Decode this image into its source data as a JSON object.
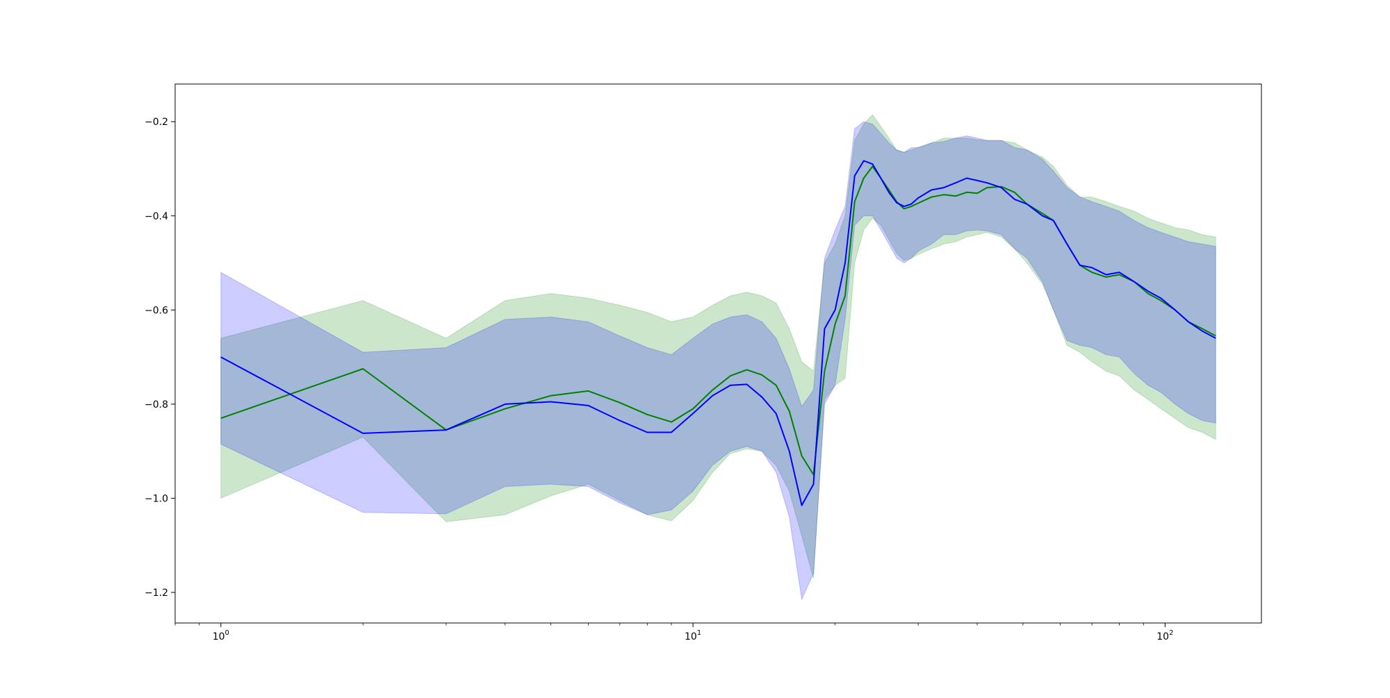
{
  "chart_data": {
    "type": "line",
    "title": "",
    "xlabel": "",
    "ylabel": "",
    "x_scale": "log",
    "xlim": [
      0.8,
      160
    ],
    "ylim": [
      -1.265,
      -0.12
    ],
    "grid": false,
    "x_ticks": [
      {
        "value": 1,
        "base": "10",
        "exp": "0"
      },
      {
        "value": 10,
        "base": "10",
        "exp": "1"
      },
      {
        "value": 100,
        "base": "10",
        "exp": "2"
      }
    ],
    "y_ticks": [
      {
        "value": -0.2,
        "label": "−0.2"
      },
      {
        "value": -0.4,
        "label": "−0.4"
      },
      {
        "value": -0.6,
        "label": "−0.6"
      },
      {
        "value": -0.8,
        "label": "−0.8"
      },
      {
        "value": -1.0,
        "label": "−1.0"
      },
      {
        "value": -1.2,
        "label": "−1.2"
      }
    ],
    "x": [
      1,
      2,
      3,
      4,
      5,
      6,
      7,
      8,
      9,
      10,
      11,
      12,
      13,
      14,
      15,
      16,
      17,
      18,
      19,
      20,
      21,
      22,
      23,
      24,
      25,
      26,
      27,
      28,
      29,
      30,
      32,
      34,
      36,
      38,
      40,
      42,
      45,
      48,
      51,
      55,
      58,
      62,
      66,
      70,
      75,
      80,
      86,
      92,
      98,
      105,
      112,
      120,
      128
    ],
    "series": [
      {
        "color": "#008000",
        "band_color": "#008000",
        "band_opacity": 0.2,
        "values": [
          -0.83,
          -0.725,
          -0.855,
          -0.81,
          -0.782,
          -0.772,
          -0.797,
          -0.822,
          -0.838,
          -0.81,
          -0.77,
          -0.74,
          -0.727,
          -0.738,
          -0.76,
          -0.815,
          -0.91,
          -0.95,
          -0.73,
          -0.63,
          -0.57,
          -0.37,
          -0.32,
          -0.295,
          -0.32,
          -0.345,
          -0.37,
          -0.385,
          -0.38,
          -0.373,
          -0.36,
          -0.355,
          -0.358,
          -0.35,
          -0.352,
          -0.34,
          -0.338,
          -0.35,
          -0.375,
          -0.395,
          -0.41,
          -0.46,
          -0.505,
          -0.52,
          -0.53,
          -0.525,
          -0.54,
          -0.565,
          -0.58,
          -0.6,
          -0.625,
          -0.64,
          -0.655
        ],
        "lower": [
          -1.0,
          -0.87,
          -1.05,
          -1.035,
          -0.995,
          -0.97,
          -1.005,
          -1.035,
          -1.048,
          -1.005,
          -0.945,
          -0.905,
          -0.895,
          -0.9,
          -0.93,
          -0.985,
          -1.08,
          -1.17,
          -0.79,
          -0.76,
          -0.745,
          -0.5,
          -0.43,
          -0.405,
          -0.42,
          -0.45,
          -0.48,
          -0.495,
          -0.49,
          -0.482,
          -0.47,
          -0.46,
          -0.455,
          -0.445,
          -0.44,
          -0.435,
          -0.445,
          -0.47,
          -0.5,
          -0.545,
          -0.6,
          -0.675,
          -0.69,
          -0.71,
          -0.73,
          -0.74,
          -0.77,
          -0.79,
          -0.81,
          -0.83,
          -0.85,
          -0.86,
          -0.875
        ],
        "upper": [
          -0.66,
          -0.58,
          -0.66,
          -0.58,
          -0.565,
          -0.575,
          -0.59,
          -0.605,
          -0.625,
          -0.615,
          -0.59,
          -0.57,
          -0.562,
          -0.57,
          -0.585,
          -0.64,
          -0.71,
          -0.73,
          -0.5,
          -0.46,
          -0.4,
          -0.24,
          -0.205,
          -0.185,
          -0.21,
          -0.235,
          -0.26,
          -0.265,
          -0.26,
          -0.255,
          -0.245,
          -0.235,
          -0.235,
          -0.235,
          -0.238,
          -0.24,
          -0.24,
          -0.245,
          -0.26,
          -0.275,
          -0.295,
          -0.335,
          -0.36,
          -0.36,
          -0.37,
          -0.38,
          -0.39,
          -0.405,
          -0.415,
          -0.425,
          -0.43,
          -0.44,
          -0.445
        ]
      },
      {
        "color": "#0000ff",
        "band_color": "#0000ff",
        "band_opacity": 0.2,
        "values": [
          -0.7,
          -0.862,
          -0.855,
          -0.8,
          -0.795,
          -0.803,
          -0.835,
          -0.86,
          -0.86,
          -0.82,
          -0.782,
          -0.76,
          -0.758,
          -0.785,
          -0.82,
          -0.9,
          -1.015,
          -0.97,
          -0.64,
          -0.6,
          -0.5,
          -0.315,
          -0.283,
          -0.29,
          -0.32,
          -0.35,
          -0.372,
          -0.38,
          -0.375,
          -0.362,
          -0.345,
          -0.34,
          -0.33,
          -0.32,
          -0.325,
          -0.33,
          -0.34,
          -0.365,
          -0.375,
          -0.4,
          -0.41,
          -0.46,
          -0.505,
          -0.51,
          -0.525,
          -0.52,
          -0.54,
          -0.56,
          -0.575,
          -0.6,
          -0.625,
          -0.645,
          -0.66
        ],
        "lower": [
          -0.885,
          -1.03,
          -1.033,
          -0.975,
          -0.97,
          -0.975,
          -1.01,
          -1.035,
          -1.025,
          -0.985,
          -0.93,
          -0.9,
          -0.89,
          -0.9,
          -0.945,
          -1.04,
          -1.215,
          -1.16,
          -0.8,
          -0.76,
          -0.62,
          -0.42,
          -0.4,
          -0.4,
          -0.43,
          -0.46,
          -0.49,
          -0.5,
          -0.49,
          -0.475,
          -0.46,
          -0.44,
          -0.44,
          -0.432,
          -0.43,
          -0.432,
          -0.44,
          -0.47,
          -0.49,
          -0.54,
          -0.6,
          -0.665,
          -0.675,
          -0.68,
          -0.695,
          -0.7,
          -0.735,
          -0.76,
          -0.775,
          -0.8,
          -0.82,
          -0.835,
          -0.84
        ],
        "upper": [
          -0.52,
          -0.69,
          -0.68,
          -0.62,
          -0.615,
          -0.625,
          -0.655,
          -0.68,
          -0.695,
          -0.66,
          -0.63,
          -0.615,
          -0.61,
          -0.625,
          -0.66,
          -0.725,
          -0.805,
          -0.77,
          -0.49,
          -0.43,
          -0.38,
          -0.215,
          -0.2,
          -0.205,
          -0.225,
          -0.245,
          -0.26,
          -0.265,
          -0.255,
          -0.255,
          -0.245,
          -0.242,
          -0.235,
          -0.23,
          -0.235,
          -0.24,
          -0.24,
          -0.255,
          -0.26,
          -0.28,
          -0.305,
          -0.34,
          -0.36,
          -0.37,
          -0.38,
          -0.39,
          -0.41,
          -0.425,
          -0.435,
          -0.445,
          -0.455,
          -0.46,
          -0.465
        ]
      }
    ]
  }
}
